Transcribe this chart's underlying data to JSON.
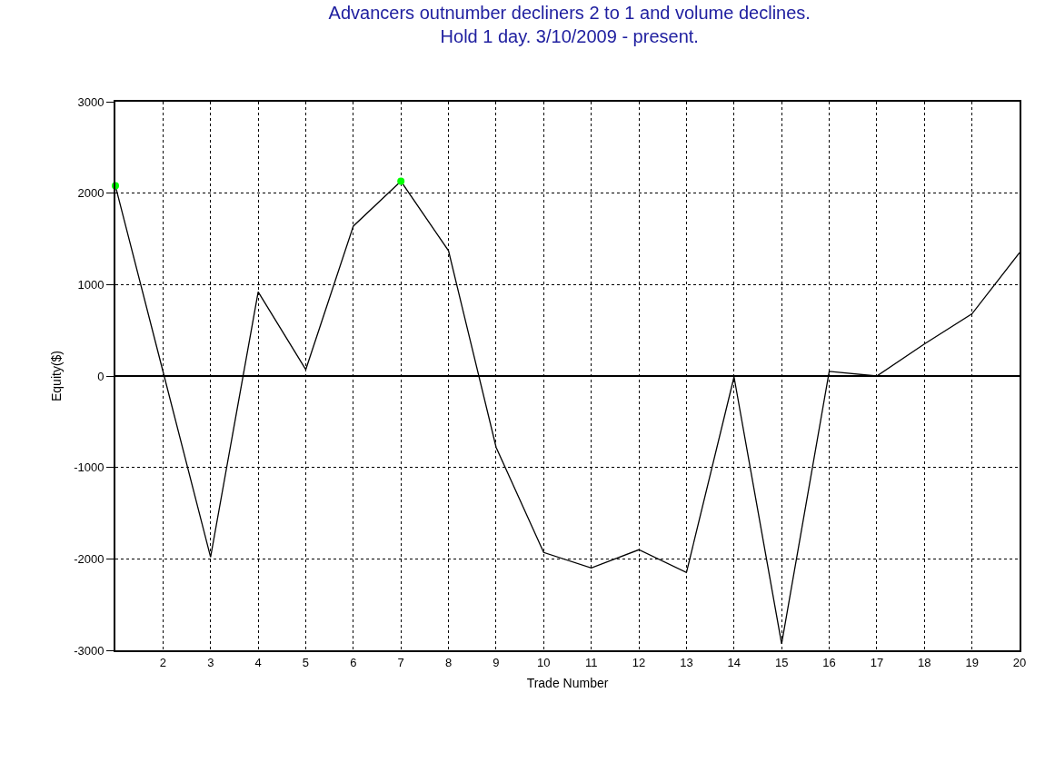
{
  "chart_data": {
    "type": "line",
    "title": "Advancers outnumber decliners 2 to 1 and volume declines.\nHold 1 day. 3/10/2009 - present.",
    "xlabel": "Trade Number",
    "ylabel": "Equity($)",
    "x": [
      1,
      2,
      3,
      4,
      5,
      6,
      7,
      8,
      9,
      10,
      11,
      12,
      13,
      14,
      15,
      16,
      17,
      18,
      19,
      20
    ],
    "series": [
      {
        "color": "#000000",
        "marker": "none",
        "values": [
          2080,
          50,
          -1980,
          920,
          70,
          1640,
          2130,
          1370,
          -780,
          -1930,
          -2100,
          -1900,
          -2150,
          -10,
          -2930,
          50,
          0,
          350,
          680,
          1350
        ]
      },
      {
        "type": "scatter",
        "color": "#00ff00",
        "marker": "circle",
        "x": [
          1,
          7
        ],
        "values": [
          2080,
          2130
        ]
      }
    ],
    "xlim": [
      1,
      20
    ],
    "xticks": [
      2,
      3,
      4,
      5,
      6,
      7,
      8,
      9,
      10,
      11,
      12,
      13,
      14,
      15,
      16,
      17,
      18,
      19,
      20
    ],
    "ylim": [
      -3000,
      3000
    ],
    "yticks": [
      -3000,
      -2000,
      -1000,
      0,
      1000,
      2000,
      3000
    ],
    "grid": true,
    "line_style": "solid"
  }
}
